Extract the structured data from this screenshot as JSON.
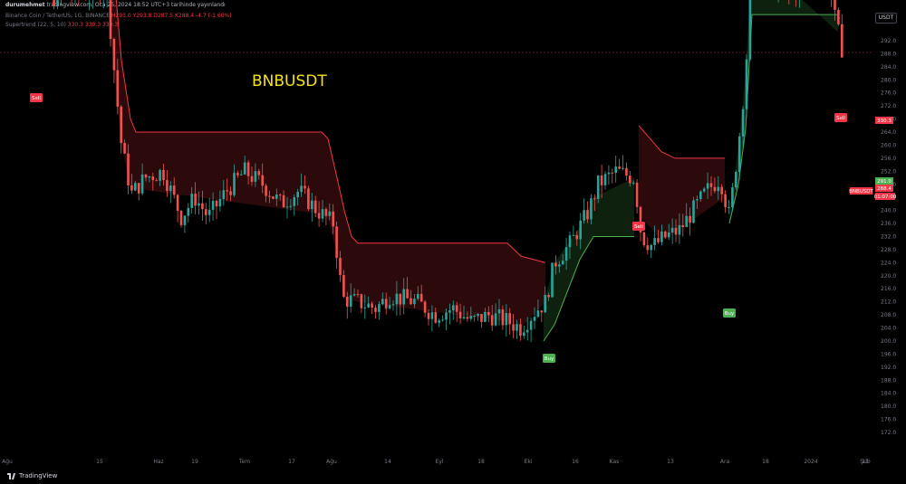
{
  "header": {
    "author": "durumehmet",
    "meta": "tradingview.com, Oca 25, 2024 18:52 UTC+3 tarihinde yayınlandı"
  },
  "legend": {
    "symbol": "Binance Coin / TetherUS, 1G, BINANCE",
    "ohlc": "H293.0 Y293.8 D287.5 K288.4 -4.7 (-1.60%)",
    "indicator": "Supertrend (22, 5, 10)",
    "indicator_values": "330.3 330.3 330.3"
  },
  "currency": "USDT",
  "chart_title": "BNBUSDT",
  "footer": {
    "brand": "TradingView"
  },
  "colors": {
    "up": "#26a69a",
    "down": "#ef5350",
    "st_red": "#f23645",
    "st_green": "#4caf50",
    "title": "#f5e11b",
    "bg": "#000000"
  },
  "chart_data": {
    "type": "candlestick",
    "price_axis": [
      "292.0",
      "288.0",
      "284.0",
      "280.0",
      "276.0",
      "272.0",
      "268.0",
      "264.0",
      "260.0",
      "256.0",
      "252.0",
      "248.0",
      "244.0",
      "240.0",
      "236.0",
      "232.0",
      "228.0",
      "224.0",
      "220.0",
      "216.0",
      "212.0",
      "208.0",
      "204.0",
      "200.0",
      "196.0",
      "192.0",
      "188.0",
      "184.0",
      "180.0",
      "176.0",
      "172.0"
    ],
    "price_axis_visible": [
      "292.0",
      "288.0",
      "284.0",
      "280.0",
      "276.0",
      "272.0",
      "268.0",
      "264.0",
      "260.0",
      "256.0",
      "252.0",
      "248.0",
      "244.0",
      "240.0",
      "236.0",
      "232.0",
      "228.0",
      "224.0",
      "220.0",
      "216.0",
      "212.0",
      "208.0",
      "204.0",
      "200.0",
      "196.0",
      "192.0",
      "188.0",
      "184.0",
      "180.0",
      "176.0",
      "172.0"
    ],
    "y_range": [
      172,
      292
    ],
    "time_axis": [
      "Ağu",
      "15",
      "Haz",
      "19",
      "Tem",
      "17",
      "Ağu",
      "14",
      "Eyl",
      "18",
      "Eki",
      "16",
      "Kas",
      "13",
      "Ara",
      "18",
      "2024",
      "15",
      "Şub"
    ],
    "price_labels": [
      {
        "text": "330.3",
        "kind": "supertrend-sell"
      },
      {
        "text": "291.0",
        "kind": "supertrend-buy"
      },
      {
        "text": "288.4",
        "kind": "last"
      },
      {
        "text": "BNBUSDT",
        "kind": "symbol"
      },
      {
        "text": "01:07:00",
        "kind": "countdown"
      }
    ],
    "signals": [
      {
        "text": "Sell"
      },
      {
        "text": "Buy"
      },
      {
        "text": "Sell"
      },
      {
        "text": "Buy"
      },
      {
        "text": "Sell"
      }
    ],
    "last_price": 288.4
  }
}
